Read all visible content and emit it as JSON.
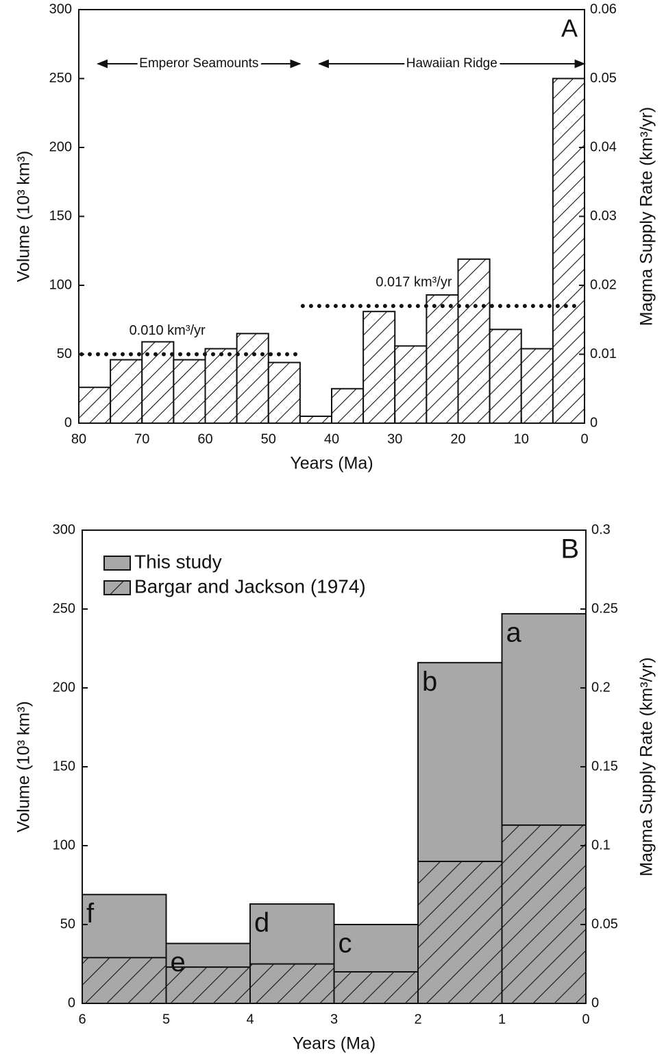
{
  "chart_data": [
    {
      "type": "histogram",
      "panel_label": "A",
      "bins": [
        80,
        75,
        70,
        65,
        60,
        55,
        50,
        45,
        40,
        35,
        30,
        25,
        20,
        15,
        10,
        5,
        0
      ],
      "values": [
        26,
        46,
        59,
        46,
        54,
        65,
        44,
        5,
        25,
        81,
        56,
        93,
        119,
        68,
        54,
        250
      ],
      "color": "#ffffff",
      "hatch": true,
      "xlim": [
        80,
        0
      ],
      "xticks": [
        80,
        70,
        60,
        50,
        40,
        30,
        20,
        10,
        0
      ],
      "ylim": [
        0,
        300
      ],
      "yticks": [
        0,
        50,
        100,
        150,
        200,
        250,
        300
      ],
      "y2lim": [
        0,
        0.06
      ],
      "y2ticks": [
        0,
        0.01,
        0.02,
        0.03,
        0.04,
        0.05,
        0.06
      ],
      "x_label": "Years (Ma)",
      "y_label": "Volume (10³ km³)",
      "y2_label": "Magma Supply Rate (km³/yr)",
      "reference_lines": [
        {
          "value": 0.01,
          "axis": "y2",
          "from": 80,
          "to": 45,
          "label": "0.010 km³/yr"
        },
        {
          "value": 0.017,
          "axis": "y2",
          "from": 45,
          "to": 0,
          "label": "0.017 km³/yr"
        }
      ],
      "ranges": [
        {
          "label": "Emperor Seamounts",
          "from": 77,
          "to": 45
        },
        {
          "label": "Hawaiian Ridge",
          "from": 42,
          "to": 0
        }
      ]
    },
    {
      "type": "histogram",
      "panel_label": "B",
      "bins": [
        6,
        5,
        4,
        3,
        2,
        1,
        0
      ],
      "barmode": "overlay",
      "series": [
        {
          "name": "This study",
          "color": "#a8a8a8",
          "values": [
            69,
            38,
            63,
            50,
            216,
            247
          ]
        },
        {
          "name": "Bargar and Jackson (1974)",
          "color": "#a8a8a8",
          "hatch": true,
          "values": [
            29,
            23,
            25,
            20,
            90,
            113
          ]
        }
      ],
      "bar_labels": [
        "f",
        "e",
        "d",
        "c",
        "b",
        "a"
      ],
      "legend": "upper left",
      "xlim": [
        6,
        0
      ],
      "xticks": [
        6,
        5,
        4,
        3,
        2,
        1,
        0
      ],
      "ylim": [
        0,
        300
      ],
      "yticks": [
        0,
        50,
        100,
        150,
        200,
        250,
        300
      ],
      "y2lim": [
        0,
        0.3
      ],
      "y2ticks": [
        0,
        0.05,
        0.1,
        0.15,
        0.2,
        0.25,
        0.3
      ],
      "x_label": "Years (Ma)",
      "y_label": "Volume (10³ km³)",
      "y2_label": "Magma Supply Rate (km³/yr)"
    }
  ]
}
